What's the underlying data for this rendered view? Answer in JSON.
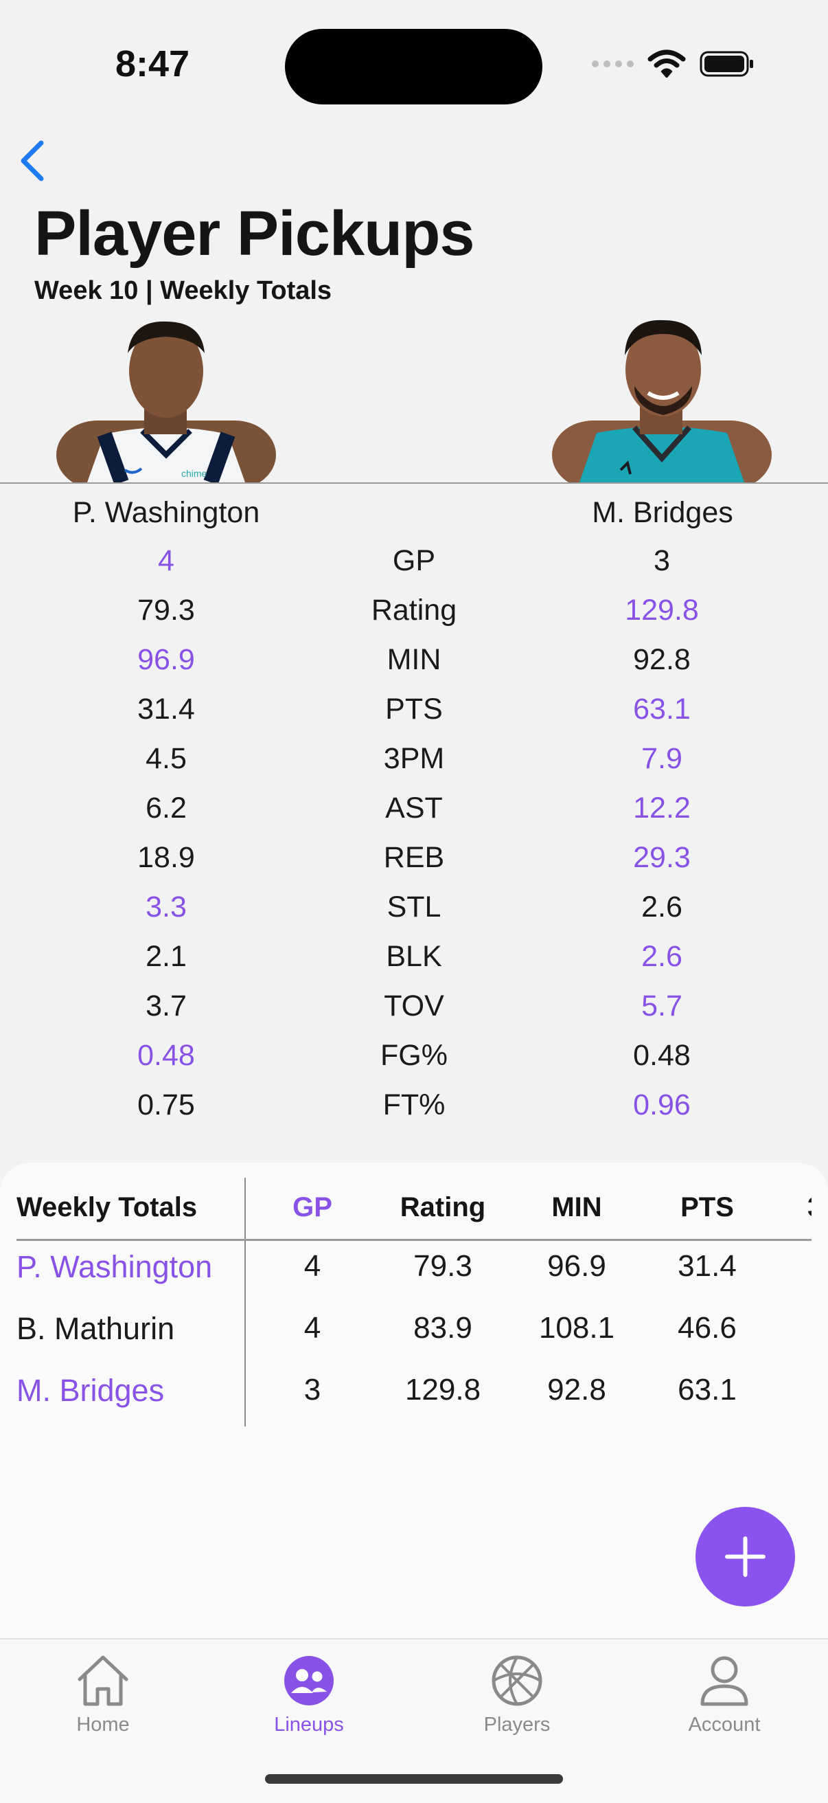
{
  "status_bar": {
    "time": "8:47"
  },
  "header": {
    "title": "Player Pickups",
    "subtitle": "Week 10 | Weekly Totals"
  },
  "players": {
    "left": {
      "name": "P. Washington",
      "jersey_text": "chime"
    },
    "right": {
      "name": "M. Bridges"
    }
  },
  "comparison": [
    {
      "stat": "GP",
      "left": "4",
      "right": "3",
      "winner": "left"
    },
    {
      "stat": "Rating",
      "left": "79.3",
      "right": "129.8",
      "winner": "right"
    },
    {
      "stat": "MIN",
      "left": "96.9",
      "right": "92.8",
      "winner": "left"
    },
    {
      "stat": "PTS",
      "left": "31.4",
      "right": "63.1",
      "winner": "right"
    },
    {
      "stat": "3PM",
      "left": "4.5",
      "right": "7.9",
      "winner": "right"
    },
    {
      "stat": "AST",
      "left": "6.2",
      "right": "12.2",
      "winner": "right"
    },
    {
      "stat": "REB",
      "left": "18.9",
      "right": "29.3",
      "winner": "right"
    },
    {
      "stat": "STL",
      "left": "3.3",
      "right": "2.6",
      "winner": "left"
    },
    {
      "stat": "BLK",
      "left": "2.1",
      "right": "2.6",
      "winner": "right"
    },
    {
      "stat": "TOV",
      "left": "3.7",
      "right": "5.7",
      "winner": "right"
    },
    {
      "stat": "FG%",
      "left": "0.48",
      "right": "0.48",
      "winner": "left"
    },
    {
      "stat": "FT%",
      "left": "0.75",
      "right": "0.96",
      "winner": "right"
    }
  ],
  "totals_table": {
    "header_label": "Weekly Totals",
    "columns": [
      "GP",
      "Rating",
      "MIN",
      "PTS"
    ],
    "rows": [
      {
        "name": "P. Washington",
        "highlight": true,
        "values": [
          "4",
          "79.3",
          "96.9",
          "31.4"
        ]
      },
      {
        "name": "B. Mathurin",
        "highlight": false,
        "values": [
          "4",
          "83.9",
          "108.1",
          "46.6"
        ]
      },
      {
        "name": "M. Bridges",
        "highlight": true,
        "values": [
          "3",
          "129.8",
          "92.8",
          "63.1"
        ]
      }
    ]
  },
  "tabs": [
    {
      "label": "Home",
      "icon": "house-icon",
      "active": false
    },
    {
      "label": "Lineups",
      "icon": "people-icon",
      "active": true
    },
    {
      "label": "Players",
      "icon": "basketball-icon",
      "active": false
    },
    {
      "label": "Account",
      "icon": "person-icon",
      "active": false
    }
  ],
  "colors": {
    "accent": "#8852e6",
    "back": "#1d7cf2"
  }
}
